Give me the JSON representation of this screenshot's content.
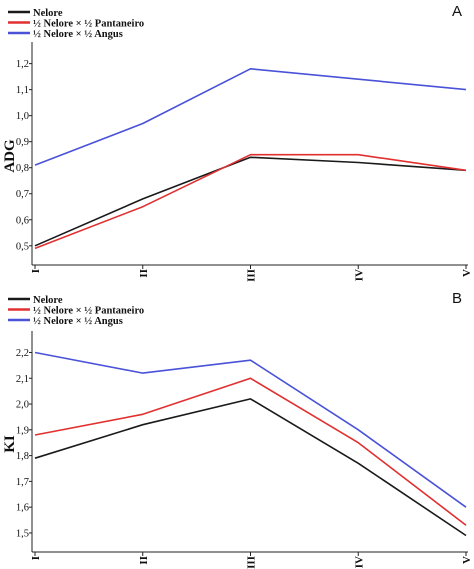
{
  "chart_data": [
    {
      "type": "line",
      "panel_label": "A",
      "ylabel": "ADG",
      "categories": [
        "I",
        "II",
        "III",
        "IV",
        "V"
      ],
      "yticks": [
        "0,5",
        "0,6",
        "0,7",
        "0,8",
        "0,9",
        "1,0",
        "1,1",
        "1,2"
      ],
      "ylim": [
        0.43,
        1.26
      ],
      "legend_position": "top-left",
      "grid": false,
      "series": [
        {
          "name": "Nelore",
          "color": "#1a1a1a",
          "values": [
            0.5,
            0.68,
            0.84,
            0.82,
            0.79
          ]
        },
        {
          "name": "½ Nelore × ½ Pantaneiro",
          "color": "#e03030",
          "values": [
            0.49,
            0.65,
            0.85,
            0.85,
            0.79
          ]
        },
        {
          "name": "½ Nelore × ½ Angus",
          "color": "#4a52d8",
          "values": [
            0.81,
            0.97,
            1.18,
            1.14,
            1.1
          ]
        }
      ]
    },
    {
      "type": "line",
      "panel_label": "B",
      "ylabel": "KI",
      "categories": [
        "I",
        "II",
        "III",
        "IV",
        "V"
      ],
      "yticks": [
        "1,5",
        "1,6",
        "1,7",
        "1,8",
        "1,9",
        "2,0",
        "2,1",
        "2,2"
      ],
      "ylim": [
        1.43,
        2.26
      ],
      "legend_position": "top-left",
      "grid": false,
      "series": [
        {
          "name": "Nelore",
          "color": "#1a1a1a",
          "values": [
            1.79,
            1.92,
            2.02,
            1.77,
            1.49
          ]
        },
        {
          "name": "½ Nelore × ½ Pantaneiro",
          "color": "#e03030",
          "values": [
            1.88,
            1.96,
            2.1,
            1.85,
            1.53
          ]
        },
        {
          "name": "½ Nelore × ½ Angus",
          "color": "#4a52d8",
          "values": [
            2.2,
            2.12,
            2.17,
            1.9,
            1.6
          ]
        }
      ]
    }
  ]
}
